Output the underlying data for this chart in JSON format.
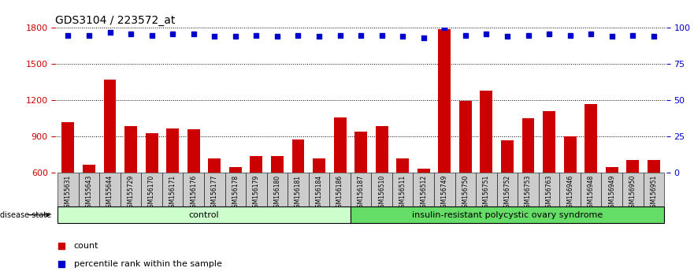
{
  "title": "GDS3104 / 223572_at",
  "samples": [
    "GSM155631",
    "GSM155643",
    "GSM155644",
    "GSM155729",
    "GSM156170",
    "GSM156171",
    "GSM156176",
    "GSM156177",
    "GSM156178",
    "GSM156179",
    "GSM156180",
    "GSM156181",
    "GSM156184",
    "GSM156186",
    "GSM156187",
    "GSM156510",
    "GSM156511",
    "GSM156512",
    "GSM156749",
    "GSM156750",
    "GSM156751",
    "GSM156752",
    "GSM156753",
    "GSM156763",
    "GSM156946",
    "GSM156948",
    "GSM156949",
    "GSM156950",
    "GSM156951"
  ],
  "bar_values": [
    1020,
    670,
    1370,
    990,
    930,
    970,
    960,
    720,
    650,
    740,
    740,
    880,
    720,
    1060,
    940,
    990,
    720,
    635,
    1790,
    1195,
    1280,
    870,
    1050,
    1110,
    900,
    1170,
    650,
    710,
    710
  ],
  "percentile_values": [
    95,
    95,
    97,
    96,
    95,
    96,
    96,
    94,
    94,
    95,
    94,
    95,
    94,
    95,
    95,
    95,
    94,
    93,
    100,
    95,
    96,
    94,
    95,
    96,
    95,
    96,
    94,
    95,
    94
  ],
  "control_count": 14,
  "disease_label": "insulin-resistant polycystic ovary syndrome",
  "control_label": "control",
  "ylim_left": [
    600,
    1800
  ],
  "ylim_right": [
    0,
    100
  ],
  "yticks_left": [
    600,
    900,
    1200,
    1500,
    1800
  ],
  "yticks_right": [
    0,
    25,
    50,
    75,
    100
  ],
  "bar_color": "#cc0000",
  "dot_color": "#0000cc",
  "control_bg": "#ccffcc",
  "disease_bg": "#66dd66",
  "axis_label_color_left": "#cc0000",
  "axis_label_color_right": "#0000cc",
  "grid_color": "#000000",
  "bg_color": "#ffffff",
  "label_bg": "#cccccc"
}
